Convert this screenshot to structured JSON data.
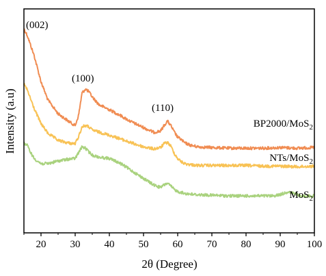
{
  "chart_data": {
    "type": "line",
    "title": "",
    "xlabel": "2θ (Degree)",
    "ylabel": "Intensity (a.u)",
    "xlim": [
      15,
      100
    ],
    "ylim": [
      0,
      1
    ],
    "x_ticks": [
      20,
      30,
      40,
      50,
      60,
      70,
      80,
      90,
      100
    ],
    "y_ticks_shown": false,
    "grid": false,
    "legend": "none (series labelled at right end of each curve)",
    "annotations": [
      {
        "text": "(002)",
        "x": 15
      },
      {
        "text": "(100)",
        "x": 32
      },
      {
        "text": "(110)",
        "x": 57
      }
    ],
    "series": [
      {
        "name": "BP2000/MoS",
        "name_subscript": "2",
        "color": "#F08C52",
        "x": [
          15,
          16,
          18,
          20,
          22,
          25,
          28,
          30,
          31,
          32,
          33,
          34,
          35,
          37,
          40,
          43,
          46,
          50,
          53,
          55,
          56,
          57,
          58,
          59,
          60,
          61,
          62,
          64,
          66,
          70,
          75,
          80,
          85,
          90,
          95,
          100
        ],
        "y": [
          0.911,
          0.881,
          0.791,
          0.675,
          0.594,
          0.532,
          0.499,
          0.479,
          0.525,
          0.624,
          0.642,
          0.63,
          0.607,
          0.572,
          0.55,
          0.526,
          0.499,
          0.47,
          0.449,
          0.455,
          0.479,
          0.499,
          0.479,
          0.45,
          0.427,
          0.417,
          0.402,
          0.39,
          0.384,
          0.381,
          0.378,
          0.378,
          0.378,
          0.381,
          0.378,
          0.381
        ]
      },
      {
        "name": "NTs/MoS",
        "name_subscript": "2",
        "color": "#F8C255",
        "x": [
          15,
          16,
          18,
          20,
          22,
          25,
          28,
          30,
          31,
          32,
          33,
          34,
          35,
          37,
          40,
          43,
          46,
          50,
          53,
          55,
          56,
          57,
          58,
          59,
          60,
          61,
          62,
          64,
          66,
          70,
          75,
          80,
          85,
          90,
          95,
          100
        ],
        "y": [
          0.665,
          0.637,
          0.555,
          0.488,
          0.445,
          0.413,
          0.401,
          0.398,
          0.43,
          0.473,
          0.479,
          0.473,
          0.459,
          0.45,
          0.436,
          0.421,
          0.404,
          0.384,
          0.375,
          0.381,
          0.398,
          0.404,
          0.387,
          0.355,
          0.332,
          0.318,
          0.309,
          0.304,
          0.301,
          0.301,
          0.301,
          0.301,
          0.298,
          0.298,
          0.295,
          0.298
        ]
      },
      {
        "name": "MoS",
        "name_subscript": "2",
        "color": "#A9D27E",
        "x": [
          15,
          16,
          17,
          18,
          20,
          22,
          25,
          28,
          30,
          31,
          32,
          33,
          34,
          35,
          37,
          40,
          43,
          46,
          50,
          53,
          55,
          56,
          57,
          58,
          59,
          60,
          62,
          65,
          70,
          75,
          80,
          85,
          88,
          90,
          92,
          94,
          96,
          100
        ],
        "y": [
          0.401,
          0.39,
          0.358,
          0.332,
          0.309,
          0.309,
          0.321,
          0.329,
          0.332,
          0.358,
          0.384,
          0.378,
          0.361,
          0.347,
          0.338,
          0.332,
          0.312,
          0.283,
          0.243,
          0.214,
          0.202,
          0.214,
          0.222,
          0.208,
          0.194,
          0.185,
          0.176,
          0.171,
          0.168,
          0.165,
          0.165,
          0.165,
          0.165,
          0.171,
          0.182,
          0.176,
          0.165,
          0.165
        ]
      }
    ]
  }
}
